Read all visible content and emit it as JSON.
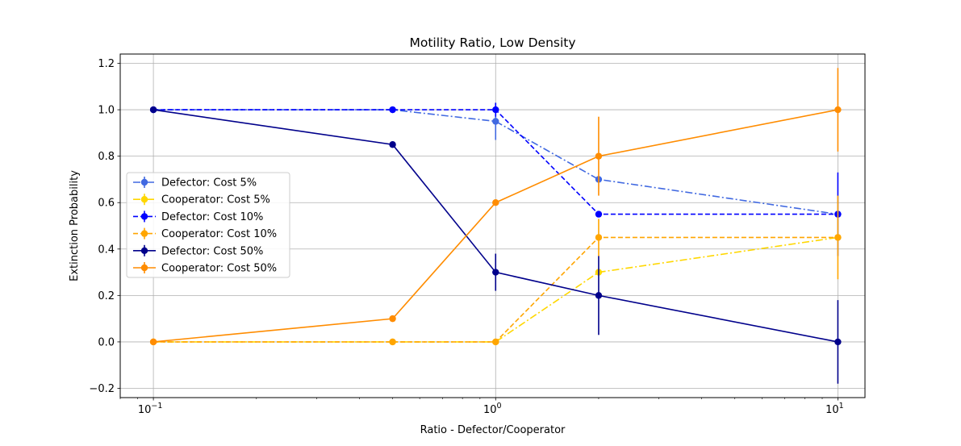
{
  "chart_data": {
    "type": "line",
    "title": "Motility Ratio, Low Density",
    "xlabel": "Ratio - Defector/Cooperator",
    "ylabel": "Extinction Probability",
    "x_scale": "log",
    "x": [
      0.1,
      0.5,
      1,
      2,
      10
    ],
    "xlim": [
      0.08,
      12
    ],
    "ylim": [
      -0.24,
      1.24
    ],
    "grid": true,
    "legend_position": "center-left",
    "x_ticks": [
      {
        "value": 0.1,
        "base": "10",
        "exp": "−1"
      },
      {
        "value": 1,
        "base": "10",
        "exp": "0"
      },
      {
        "value": 10,
        "base": "10",
        "exp": "1"
      }
    ],
    "y_ticks": [
      {
        "value": -0.2,
        "label": "−0.2"
      },
      {
        "value": 0.0,
        "label": "0.0"
      },
      {
        "value": 0.2,
        "label": "0.2"
      },
      {
        "value": 0.4,
        "label": "0.4"
      },
      {
        "value": 0.6,
        "label": "0.6"
      },
      {
        "value": 0.8,
        "label": "0.8"
      },
      {
        "value": 1.0,
        "label": "1.0"
      },
      {
        "value": 1.2,
        "label": "1.2"
      }
    ],
    "series": [
      {
        "name": "Defector: Cost 5%",
        "color": "#4169e1",
        "linestyle": "dashdot",
        "values": [
          1.0,
          1.0,
          0.95,
          0.7,
          0.55
        ],
        "errors": [
          0.0,
          0.0,
          0.08,
          0.0,
          0.0
        ]
      },
      {
        "name": "Cooperator: Cost 5%",
        "color": "#ffd700",
        "linestyle": "dashdot",
        "values": [
          0.0,
          0.0,
          0.0,
          0.3,
          0.45
        ],
        "errors": [
          0.0,
          0.0,
          0.0,
          0.0,
          0.0
        ]
      },
      {
        "name": "Defector: Cost 10%",
        "color": "#0000ff",
        "linestyle": "dashed",
        "values": [
          1.0,
          1.0,
          1.0,
          0.55,
          0.55
        ],
        "errors": [
          0.0,
          0.0,
          0.03,
          0.0,
          0.18
        ]
      },
      {
        "name": "Cooperator: Cost 10%",
        "color": "#ffa500",
        "linestyle": "dashed",
        "values": [
          0.0,
          0.0,
          0.0,
          0.45,
          0.45
        ],
        "errors": [
          0.0,
          0.0,
          0.0,
          0.08,
          0.18
        ]
      },
      {
        "name": "Defector: Cost 50%",
        "color": "#00008b",
        "linestyle": "solid",
        "values": [
          1.0,
          0.85,
          0.3,
          0.2,
          0.0
        ],
        "errors": [
          0.0,
          0.0,
          0.08,
          0.17,
          0.18
        ]
      },
      {
        "name": "Cooperator: Cost 50%",
        "color": "#ff8c00",
        "linestyle": "solid",
        "values": [
          0.0,
          0.1,
          0.6,
          0.8,
          1.0
        ],
        "errors": [
          0.0,
          0.0,
          0.0,
          0.17,
          0.18
        ]
      }
    ]
  }
}
